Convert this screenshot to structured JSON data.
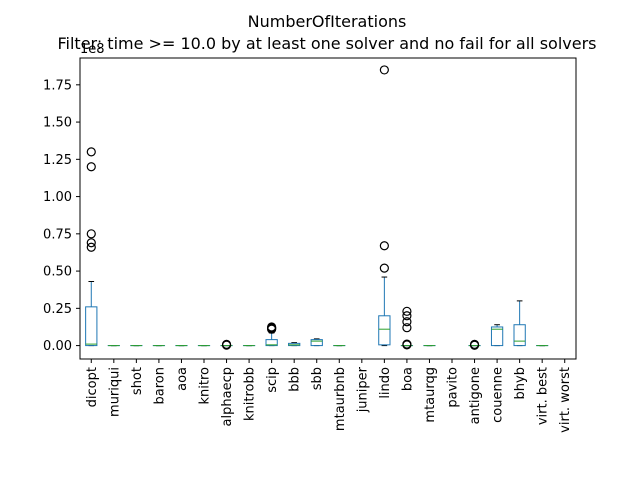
{
  "chart_data": {
    "type": "box",
    "title": "NumberOfIterations",
    "subtitle": "Filter: time >= 10.0 by at least one solver and no fail for all solvers",
    "y_offset_label": "1e8",
    "ylim": [
      -0.09,
      1.93
    ],
    "y_ticks": [
      0.0,
      0.25,
      0.5,
      0.75,
      1.0,
      1.25,
      1.5,
      1.75
    ],
    "y_tick_labels": [
      "0.00",
      "0.25",
      "0.50",
      "0.75",
      "1.00",
      "1.25",
      "1.50",
      "1.75"
    ],
    "grid": false,
    "colors": {
      "box": "#1f77b4",
      "median": "#2ca02c",
      "flier": "#000000"
    },
    "categories": [
      "dicopt",
      "muriqui",
      "shot",
      "baron",
      "aoa",
      "knitro",
      "alphaecp",
      "knitrobb",
      "scip",
      "bbb",
      "sbb",
      "mtaurbnb",
      "juniper",
      "lindo",
      "boa",
      "mtaurqg",
      "pavito",
      "antigone",
      "couenne",
      "bhyb",
      "virt. best",
      "virt. worst"
    ],
    "boxes": [
      {
        "name": "dicopt",
        "whislo": 0.0,
        "q1": 0.0,
        "med": 0.01,
        "q3": 0.26,
        "whishi": 0.43,
        "fliers": [
          0.66,
          0.69,
          0.75,
          1.2,
          1.3
        ]
      },
      {
        "name": "muriqui",
        "whislo": 0.0,
        "q1": 0.0,
        "med": 0.0,
        "q3": 0.0,
        "whishi": 0.0,
        "fliers": []
      },
      {
        "name": "shot",
        "whislo": 0.0,
        "q1": 0.0,
        "med": 0.0,
        "q3": 0.0,
        "whishi": 0.0,
        "fliers": []
      },
      {
        "name": "baron",
        "whislo": 0.0,
        "q1": 0.0,
        "med": 0.0,
        "q3": 0.0,
        "whishi": 0.0,
        "fliers": []
      },
      {
        "name": "aoa",
        "whislo": 0.0,
        "q1": 0.0,
        "med": 0.0,
        "q3": 0.0,
        "whishi": 0.0,
        "fliers": []
      },
      {
        "name": "knitro",
        "whislo": 0.0,
        "q1": 0.0,
        "med": 0.0,
        "q3": 0.0,
        "whishi": 0.0,
        "fliers": []
      },
      {
        "name": "alphaecp",
        "whislo": 0.0,
        "q1": 0.0,
        "med": 0.0,
        "q3": 0.0,
        "whishi": 0.0,
        "fliers": [
          0.003,
          0.008
        ]
      },
      {
        "name": "knitrobb",
        "whislo": 0.0,
        "q1": 0.0,
        "med": 0.0,
        "q3": 0.0,
        "whishi": 0.0,
        "fliers": []
      },
      {
        "name": "scip",
        "whislo": 0.0,
        "q1": 0.0,
        "med": 0.005,
        "q3": 0.04,
        "whishi": 0.085,
        "fliers": [
          0.11,
          0.115,
          0.12,
          0.125
        ]
      },
      {
        "name": "bbb",
        "whislo": 0.0,
        "q1": 0.0,
        "med": 0.005,
        "q3": 0.015,
        "whishi": 0.02,
        "fliers": []
      },
      {
        "name": "sbb",
        "whislo": 0.0,
        "q1": 0.0,
        "med": 0.03,
        "q3": 0.04,
        "whishi": 0.045,
        "fliers": []
      },
      {
        "name": "mtaurbnb",
        "whislo": 0.0,
        "q1": 0.0,
        "med": 0.0,
        "q3": 0.0,
        "whishi": 0.0,
        "fliers": []
      },
      {
        "name": "juniper",
        "whislo": null,
        "q1": null,
        "med": null,
        "q3": null,
        "whishi": null,
        "fliers": []
      },
      {
        "name": "lindo",
        "whislo": 0.0,
        "q1": 0.005,
        "med": 0.11,
        "q3": 0.2,
        "whishi": 0.46,
        "fliers": [
          0.52,
          0.67,
          1.85
        ]
      },
      {
        "name": "boa",
        "whislo": 0.0,
        "q1": 0.0,
        "med": 0.0,
        "q3": 0.0,
        "whishi": 0.0,
        "fliers": [
          0.005,
          0.01,
          0.12,
          0.16,
          0.2,
          0.23
        ]
      },
      {
        "name": "mtaurqg",
        "whislo": 0.0,
        "q1": 0.0,
        "med": 0.0,
        "q3": 0.0,
        "whishi": 0.0,
        "fliers": []
      },
      {
        "name": "pavito",
        "whislo": null,
        "q1": null,
        "med": null,
        "q3": null,
        "whishi": null,
        "fliers": []
      },
      {
        "name": "antigone",
        "whislo": 0.0,
        "q1": 0.0,
        "med": 0.0,
        "q3": 0.0,
        "whishi": 0.0,
        "fliers": [
          0.002,
          0.008
        ]
      },
      {
        "name": "couenne",
        "whislo": 0.0,
        "q1": 0.0,
        "med": 0.11,
        "q3": 0.125,
        "whishi": 0.14,
        "fliers": []
      },
      {
        "name": "bhyb",
        "whislo": 0.0,
        "q1": 0.0,
        "med": 0.03,
        "q3": 0.14,
        "whishi": 0.3,
        "fliers": []
      },
      {
        "name": "virt. best",
        "whislo": 0.0,
        "q1": 0.0,
        "med": 0.0,
        "q3": 0.0,
        "whishi": 0.0,
        "fliers": []
      },
      {
        "name": "virt. worst",
        "whislo": null,
        "q1": null,
        "med": null,
        "q3": null,
        "whishi": null,
        "fliers": []
      }
    ]
  }
}
